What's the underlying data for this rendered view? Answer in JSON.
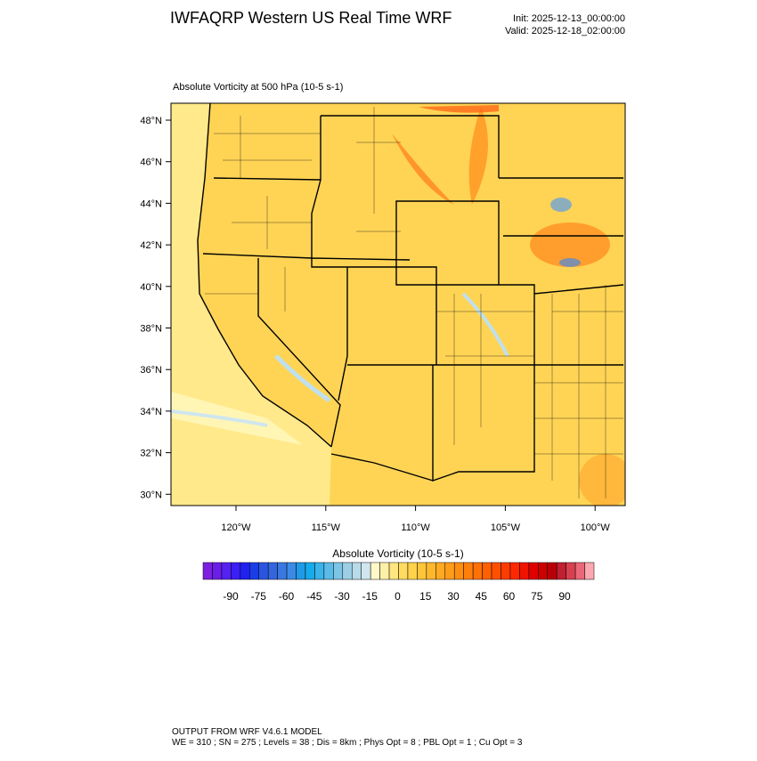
{
  "header": {
    "title": "IWFAQRP Western US Real Time WRF",
    "init": "Init: 2025-12-13_00:00:00",
    "valid": "Valid: 2025-12-18_02:00:00"
  },
  "map": {
    "subtitle": "Absolute Vorticity at 500 hPa   (10-5 s-1)",
    "lat_labels": [
      "48°N",
      "46°N",
      "44°N",
      "42°N",
      "40°N",
      "38°N",
      "36°N",
      "34°N",
      "32°N",
      "30°N"
    ],
    "lon_labels": [
      "120°W",
      "115°W",
      "110°W",
      "105°W",
      "100°W"
    ]
  },
  "colorbar": {
    "title": "Absolute Vorticity  (10-5 s-1)",
    "labels": [
      "-90",
      "-75",
      "-60",
      "-45",
      "-30",
      "-15",
      "0",
      "15",
      "30",
      "45",
      "60",
      "75",
      "90"
    ],
    "colors": [
      "#7d1fe0",
      "#6a1fe8",
      "#5522f0",
      "#3b1ff5",
      "#2020f0",
      "#1a3de8",
      "#2a55e0",
      "#3366dd",
      "#3a78e0",
      "#3c8ae6",
      "#1e9be8",
      "#16aaea",
      "#3ab3ea",
      "#5bbbe8",
      "#7cc5e6",
      "#9ccfe6",
      "#b7dbe9",
      "#cfe6ee",
      "#fff8c8",
      "#fff0a8",
      "#ffe680",
      "#ffdc60",
      "#ffd24a",
      "#ffc53a",
      "#ffb82e",
      "#ffaa22",
      "#ff9c18",
      "#ff8e10",
      "#ff7f0a",
      "#ff7005",
      "#ff6000",
      "#ff5000",
      "#ff3c00",
      "#ff2800",
      "#f01400",
      "#e00000",
      "#cc0000",
      "#b80008",
      "#c02030",
      "#d84050",
      "#ec6878",
      "#fca8b0"
    ]
  },
  "footer": {
    "line1": "OUTPUT FROM WRF V4.6.1 MODEL",
    "line2": "WE = 310 ; SN = 275 ; Levels = 38 ; Dis = 8km ; Phys Opt = 8 ; PBL Opt = 1 ; Cu Opt = 3"
  }
}
